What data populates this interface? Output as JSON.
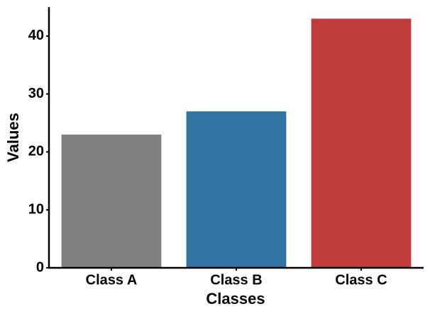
{
  "chart_data": {
    "type": "bar",
    "xlabel": "Classes",
    "ylabel": "Values",
    "categories": [
      "Class A",
      "Class B",
      "Class C"
    ],
    "values": [
      23,
      27,
      43
    ],
    "colors": [
      "#808080",
      "#3274a1",
      "#c03d3e"
    ],
    "ylim": [
      0,
      45
    ],
    "yticks": [
      0,
      10,
      20,
      30,
      40
    ],
    "grid": false
  }
}
